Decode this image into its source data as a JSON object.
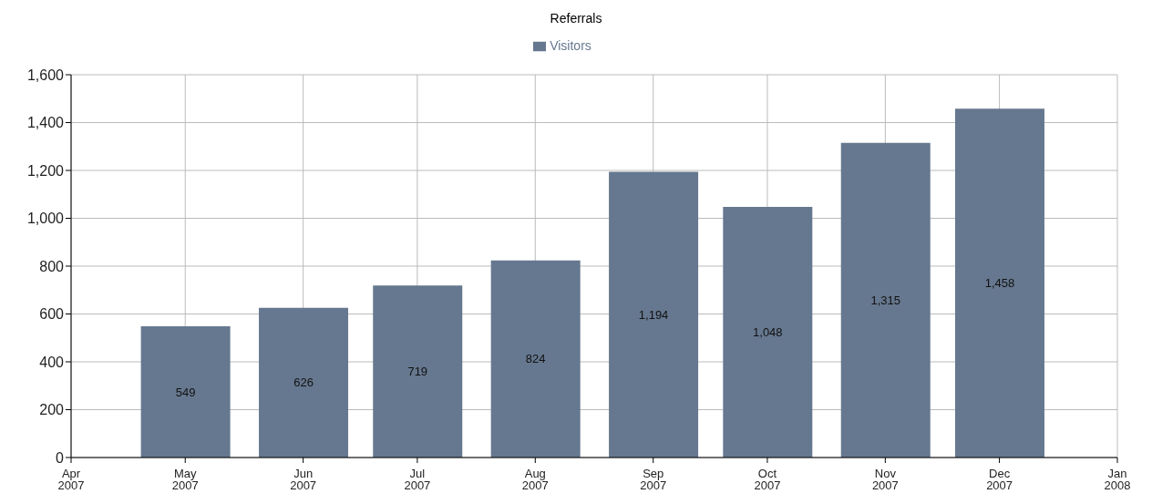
{
  "chart_data": {
    "type": "bar",
    "title": "Referrals",
    "x": [
      "2007-05",
      "2007-06",
      "2007-07",
      "2007-08",
      "2007-09",
      "2007-10",
      "2007-11",
      "2007-12"
    ],
    "series": [
      {
        "name": "Visitors",
        "color": "#66788f",
        "values": [
          549,
          626,
          719,
          824,
          1194,
          1048,
          1315,
          1458
        ],
        "value_labels": [
          "549",
          "626",
          "719",
          "824",
          "1,194",
          "1,048",
          "1,315",
          "1,458"
        ]
      }
    ],
    "xlim": [
      "2007-04",
      "2008-01"
    ],
    "xticks": [
      {
        "value": "2007-04",
        "label": "Apr 2007"
      },
      {
        "value": "2007-05",
        "label": "May 2007"
      },
      {
        "value": "2007-06",
        "label": "Jun 2007"
      },
      {
        "value": "2007-07",
        "label": "Jul 2007"
      },
      {
        "value": "2007-08",
        "label": "Aug 2007"
      },
      {
        "value": "2007-09",
        "label": "Sep 2007"
      },
      {
        "value": "2007-10",
        "label": "Oct 2007"
      },
      {
        "value": "2007-11",
        "label": "Nov 2007"
      },
      {
        "value": "2007-12",
        "label": "Dec 2007"
      },
      {
        "value": "2008-01",
        "label": "Jan 2008"
      }
    ],
    "ylim": [
      0,
      1600
    ],
    "yticks": [
      0,
      200,
      400,
      600,
      800,
      {
        "value": 1000,
        "label": "1,000"
      },
      {
        "value": 1200,
        "label": "1,200"
      },
      {
        "value": 1400,
        "label": "1,400"
      },
      {
        "value": 1600,
        "label": "1,600"
      }
    ],
    "grid": true,
    "legend": "top"
  }
}
